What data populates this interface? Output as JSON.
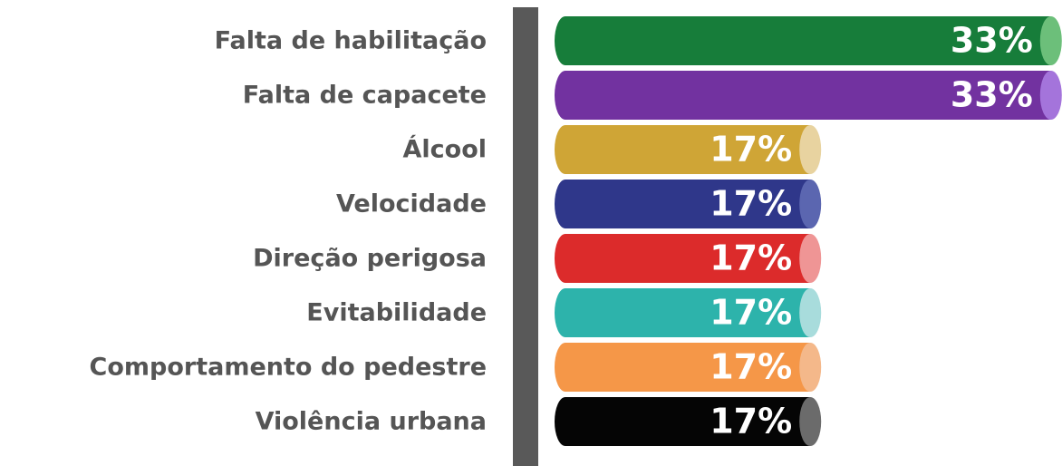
{
  "chart_data": {
    "type": "bar",
    "orientation": "horizontal",
    "categories": [
      "Falta de habilitação",
      "Falta de capacete",
      "Álcool",
      "Velocidade",
      "Direção perigosa",
      "Evitabilidade",
      "Comportamento do pedestre",
      "Violência urbana"
    ],
    "values": [
      33,
      33,
      17,
      17,
      17,
      17,
      17,
      17
    ],
    "value_labels": [
      "33%",
      "33%",
      "17%",
      "17%",
      "17%",
      "17%",
      "17%",
      "17%"
    ],
    "colors": [
      "#177d3a",
      "#7232a0",
      "#cfa536",
      "#2f378a",
      "#dc2b2b",
      "#2db3ab",
      "#f59748",
      "#050505"
    ],
    "cap_colors": [
      "#6cbf7a",
      "#a474db",
      "#e8d3a0",
      "#5b66b0",
      "#ef9595",
      "#a8dcdc",
      "#f4b88a",
      "#6b6b6b"
    ]
  }
}
